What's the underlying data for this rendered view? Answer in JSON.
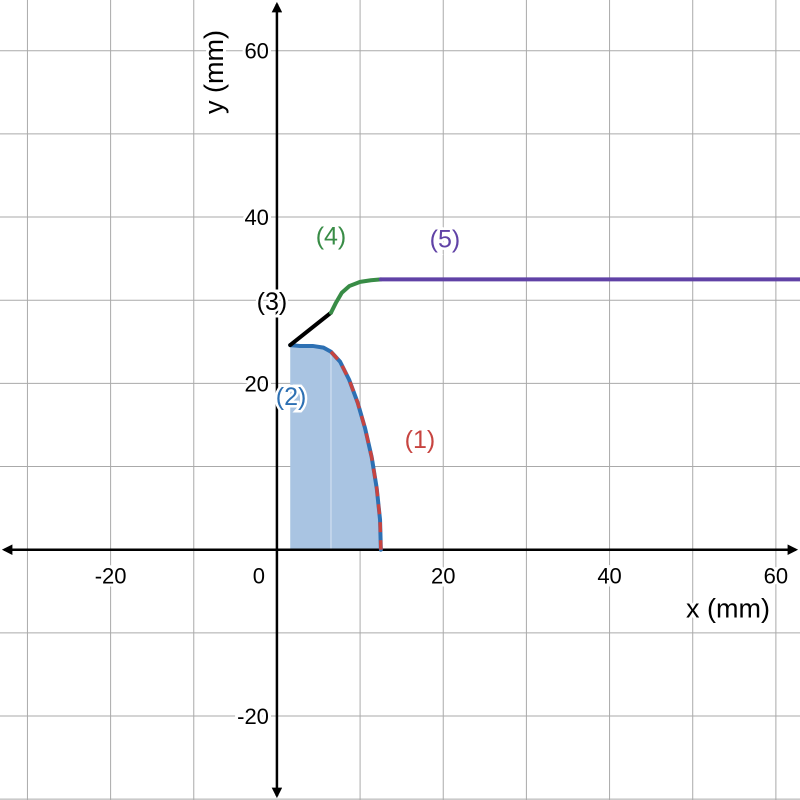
{
  "chart_data": {
    "type": "line",
    "xlabel": "x (mm)",
    "ylabel": "y (mm)",
    "xlim": [
      -33.3,
      62.9
    ],
    "ylim": [
      -30.1,
      66.1
    ],
    "grid": true,
    "x_ticks": [
      -20,
      0,
      20,
      40,
      60
    ],
    "y_ticks": [
      -20,
      20,
      40,
      60
    ],
    "x_tick_labels": [
      "-20",
      "0",
      "20",
      "40",
      "60"
    ],
    "y_tick_labels": [
      "-20",
      "20",
      "40",
      "60"
    ],
    "origin_label": "0",
    "colors": {
      "red": "#c74440",
      "blue": "#2d70b3",
      "black": "#000000",
      "green": "#388c46",
      "purple": "#6042a6",
      "fill": "#a9c4e2",
      "grid": "#aaaaaa"
    },
    "series": [
      {
        "name": "(1)",
        "color": "#c74440",
        "style": "dashed",
        "points": [
          [
            6.5,
            23.8
          ],
          [
            7.6,
            22.6
          ],
          [
            8.7,
            20.4
          ],
          [
            9.7,
            17.7
          ],
          [
            10.6,
            14.6
          ],
          [
            11.4,
            11.1
          ],
          [
            12.0,
            7.4
          ],
          [
            12.4,
            3.6
          ],
          [
            12.5,
            0
          ]
        ]
      },
      {
        "name": "(2)",
        "color": "#2d70b3",
        "style": "solid",
        "points": [
          [
            1.6,
            24.6
          ],
          [
            2.8,
            24.5
          ],
          [
            4.3,
            24.5
          ],
          [
            5.6,
            24.3
          ],
          [
            6.5,
            23.8
          ],
          [
            7.6,
            22.6
          ],
          [
            8.7,
            20.4
          ],
          [
            9.7,
            17.7
          ],
          [
            10.6,
            14.6
          ],
          [
            11.4,
            11.1
          ],
          [
            12.0,
            7.4
          ],
          [
            12.4,
            3.6
          ],
          [
            12.5,
            0
          ]
        ]
      },
      {
        "name": "(3)",
        "color": "#000000",
        "style": "solid",
        "points": [
          [
            1.6,
            24.6
          ],
          [
            6.5,
            28.5
          ]
        ]
      },
      {
        "name": "(4)",
        "color": "#388c46",
        "style": "solid",
        "points": [
          [
            6.5,
            28.5
          ],
          [
            7.1,
            29.7
          ],
          [
            7.8,
            30.9
          ],
          [
            8.7,
            31.7
          ],
          [
            10.0,
            32.2
          ],
          [
            11.3,
            32.4
          ],
          [
            12.5,
            32.5
          ]
        ]
      },
      {
        "name": "(5)",
        "color": "#6042a6",
        "style": "solid",
        "points": [
          [
            12.5,
            32.5
          ],
          [
            62.9,
            32.5
          ]
        ]
      }
    ],
    "shaded_region": {
      "color": "#a9c4e2",
      "boundary": [
        [
          1.6,
          0
        ],
        [
          1.6,
          24.6
        ],
        [
          2.8,
          24.5
        ],
        [
          4.3,
          24.5
        ],
        [
          5.6,
          24.3
        ],
        [
          6.5,
          23.8
        ],
        [
          7.6,
          22.6
        ],
        [
          8.7,
          20.4
        ],
        [
          9.7,
          17.7
        ],
        [
          10.6,
          14.6
        ],
        [
          11.4,
          11.1
        ],
        [
          12.0,
          7.4
        ],
        [
          12.4,
          3.6
        ],
        [
          12.5,
          0
        ]
      ]
    },
    "inner_divider_x": 6.5,
    "annotations": [
      {
        "text": "(1)",
        "x": 17.2,
        "y": 13.3,
        "color": "#c74440"
      },
      {
        "text": "(2)",
        "x": 1.7,
        "y": 18.5,
        "color": "#2d70b3"
      },
      {
        "text": "(3)",
        "x": -0.6,
        "y": 29.9,
        "color": "#000000"
      },
      {
        "text": "(4)",
        "x": 6.5,
        "y": 37.8,
        "color": "#388c46"
      },
      {
        "text": "(5)",
        "x": 20.2,
        "y": 37.4,
        "color": "#6042a6"
      }
    ]
  }
}
